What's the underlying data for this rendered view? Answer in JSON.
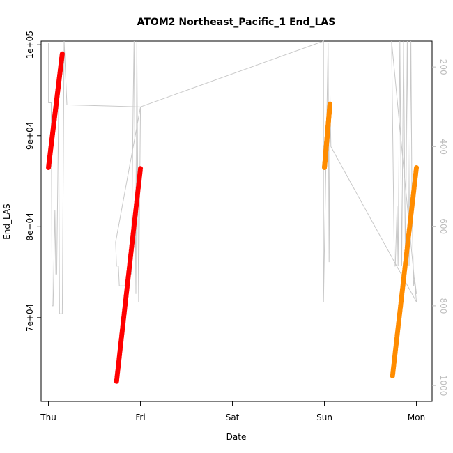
{
  "chart_data": {
    "type": "scatter",
    "title": "ATOM2 Northeast_Pacific_1 End_LAS",
    "xlabel": "Date",
    "ylabel": "End_LAS",
    "x_ticks": [
      "Thu",
      "Fri",
      "Sat",
      "Sun",
      "Mon"
    ],
    "x_range": [
      -0.08,
      4.17
    ],
    "y_ticks": [
      {
        "value": 70000,
        "label": "7e+04"
      },
      {
        "value": 80000,
        "label": "8e+04"
      },
      {
        "value": 90000,
        "label": "9e+04"
      },
      {
        "value": 100000,
        "label": "1e+05"
      }
    ],
    "y_range": [
      60800,
      100400
    ],
    "y2_ticks": [
      {
        "value": 200,
        "label": "200"
      },
      {
        "value": 400,
        "label": "400"
      },
      {
        "value": 600,
        "label": "600"
      },
      {
        "value": 800,
        "label": "800"
      },
      {
        "value": 1000,
        "label": "1000"
      }
    ],
    "y2_range": [
      1040,
      135
    ],
    "colors": {
      "series_1": "#ff0000",
      "series_2": "#ff8c00",
      "secondary_line": "#c8c8c8"
    },
    "series": [
      {
        "color_key": "series_1",
        "segments": [
          {
            "x0": 0.0,
            "y0": 86500,
            "x1": 0.15,
            "y1": 99000
          },
          {
            "x0": 0.74,
            "y0": 63000,
            "x1": 1.0,
            "y1": 86400
          }
        ]
      },
      {
        "color_key": "series_2",
        "segments": [
          {
            "x0": 3.0,
            "y0": 86500,
            "x1": 3.06,
            "y1": 93500
          },
          {
            "x0": 3.74,
            "y0": 63600,
            "x1": 4.0,
            "y1": 86500
          }
        ]
      }
    ],
    "secondary_line": [
      [
        0.0,
        140
      ],
      [
        0.0,
        290
      ],
      [
        0.03,
        290
      ],
      [
        0.04,
        800
      ],
      [
        0.05,
        800
      ],
      [
        0.07,
        560
      ],
      [
        0.08,
        720
      ],
      [
        0.09,
        720
      ],
      [
        0.11,
        300
      ],
      [
        0.12,
        820
      ],
      [
        0.13,
        820
      ],
      [
        0.15,
        820
      ],
      [
        0.17,
        135
      ],
      [
        0.2,
        295
      ],
      [
        1.0,
        300
      ],
      [
        0.73,
        640
      ],
      [
        0.74,
        700
      ],
      [
        0.76,
        700
      ],
      [
        0.77,
        750
      ],
      [
        0.83,
        750
      ],
      [
        0.85,
        720
      ],
      [
        0.9,
        720
      ],
      [
        0.92,
        300
      ],
      [
        0.93,
        135
      ],
      [
        0.95,
        770
      ],
      [
        0.96,
        135
      ],
      [
        0.98,
        790
      ],
      [
        1.0,
        300
      ],
      [
        2.99,
        135
      ],
      [
        2.99,
        790
      ],
      [
        3.04,
        140
      ],
      [
        3.05,
        690
      ],
      [
        3.06,
        270
      ],
      [
        3.07,
        400
      ],
      [
        4.0,
        790
      ],
      [
        3.73,
        135
      ],
      [
        3.76,
        700
      ],
      [
        3.77,
        700
      ],
      [
        3.79,
        550
      ],
      [
        3.8,
        700
      ],
      [
        3.82,
        135
      ],
      [
        3.84,
        700
      ],
      [
        3.86,
        135
      ],
      [
        3.88,
        700
      ],
      [
        3.9,
        135
      ],
      [
        3.92,
        700
      ],
      [
        3.94,
        135
      ],
      [
        3.95,
        500
      ],
      [
        3.96,
        650
      ],
      [
        3.97,
        750
      ],
      [
        3.98,
        730
      ],
      [
        4.0,
        770
      ]
    ]
  }
}
